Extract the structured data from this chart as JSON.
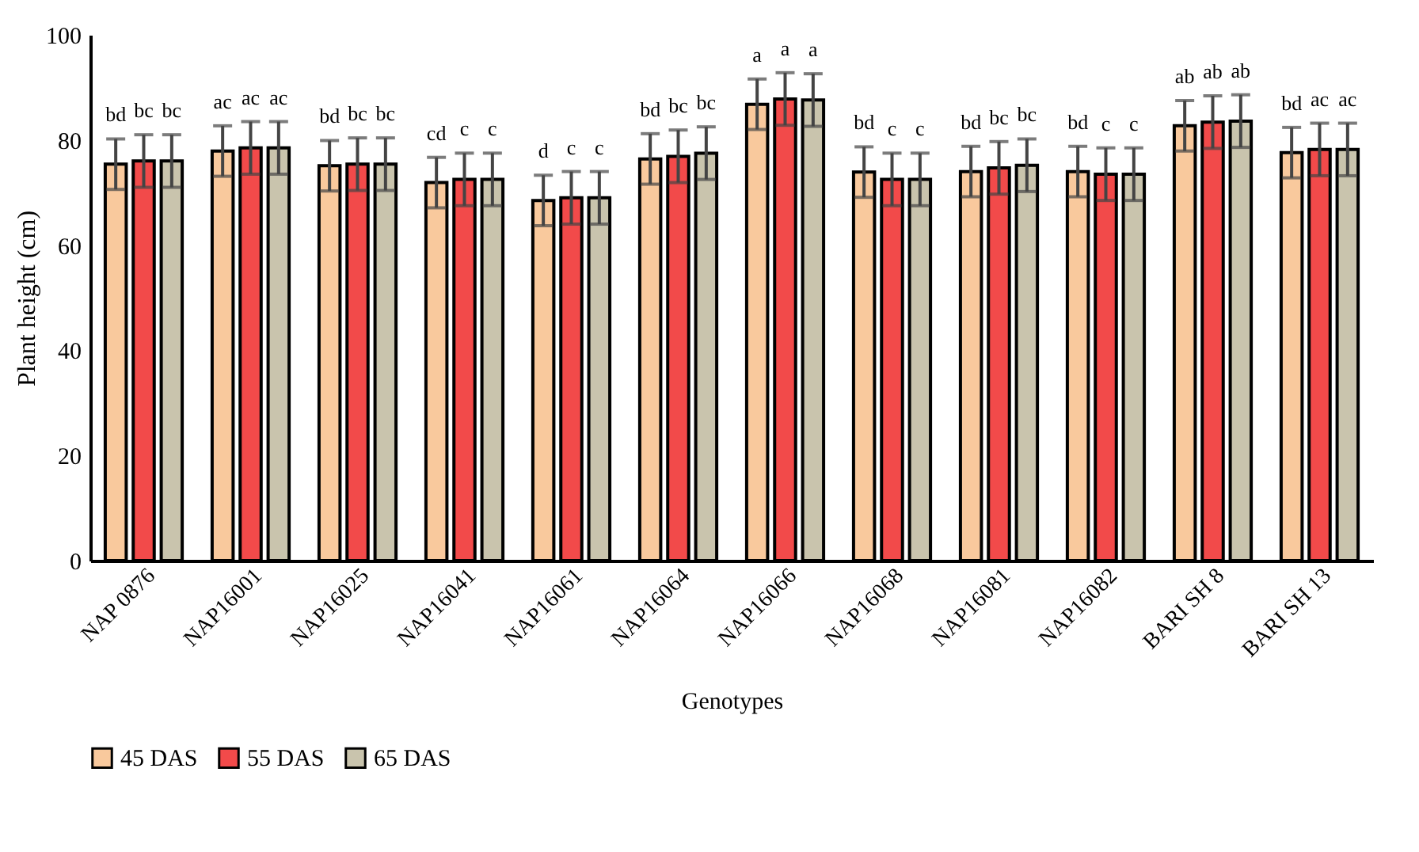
{
  "chart_data": {
    "type": "bar",
    "xlabel": "Genotypes",
    "ylabel": "Plant height (cm)",
    "categories": [
      "NAP 0876",
      "NAP16001",
      "NAP16025",
      "NAP16041",
      "NAP16061",
      "NAP16064",
      "NAP16066",
      "NAP16068",
      "NAP16081",
      "NAP16082",
      "BARI SH 8",
      "BARI SH 13"
    ],
    "series": [
      {
        "name": "45 DAS",
        "color": "#f9c99d",
        "values": [
          75.4,
          77.9,
          75.1,
          71.9,
          68.5,
          76.4,
          86.8,
          73.9,
          74.0,
          74.0,
          82.7,
          77.6
        ],
        "errors": [
          4.8,
          4.8,
          4.8,
          4.8,
          4.8,
          4.8,
          4.8,
          4.8,
          4.8,
          4.8,
          4.8,
          4.8
        ],
        "value_labels": [
          "bd",
          "ac",
          "bd",
          "cd",
          "d",
          "bd",
          "a",
          "bd",
          "bd",
          "bd",
          "ab",
          "bd"
        ]
      },
      {
        "name": "55 DAS",
        "color": "#f24a4a",
        "values": [
          76.0,
          78.5,
          75.4,
          72.5,
          69.0,
          76.9,
          87.8,
          72.5,
          74.7,
          73.5,
          83.4,
          78.2
        ],
        "errors": [
          5,
          5,
          5,
          5,
          5,
          5,
          5,
          5,
          5,
          5,
          5,
          5
        ],
        "value_labels": [
          "bc",
          "ac",
          "bc",
          "c",
          "c",
          "bc",
          "a",
          "c",
          "bc",
          "c",
          "ab",
          "ac"
        ]
      },
      {
        "name": "65 DAS",
        "color": "#c9c4ad",
        "values": [
          76.0,
          78.5,
          75.4,
          72.5,
          69.0,
          77.5,
          87.6,
          72.5,
          75.2,
          73.5,
          83.6,
          78.2
        ],
        "errors": [
          5,
          5,
          5,
          5,
          5,
          5,
          5,
          5,
          5,
          5,
          5,
          5
        ],
        "value_labels": [
          "bc",
          "ac",
          "bc",
          "c",
          "c",
          "bc",
          "a",
          "c",
          "bc",
          "c",
          "ab",
          "ac"
        ]
      }
    ],
    "ylim": [
      0,
      100
    ],
    "yticks": [
      0,
      20,
      40,
      60,
      80,
      100
    ],
    "legend": "bottom"
  }
}
